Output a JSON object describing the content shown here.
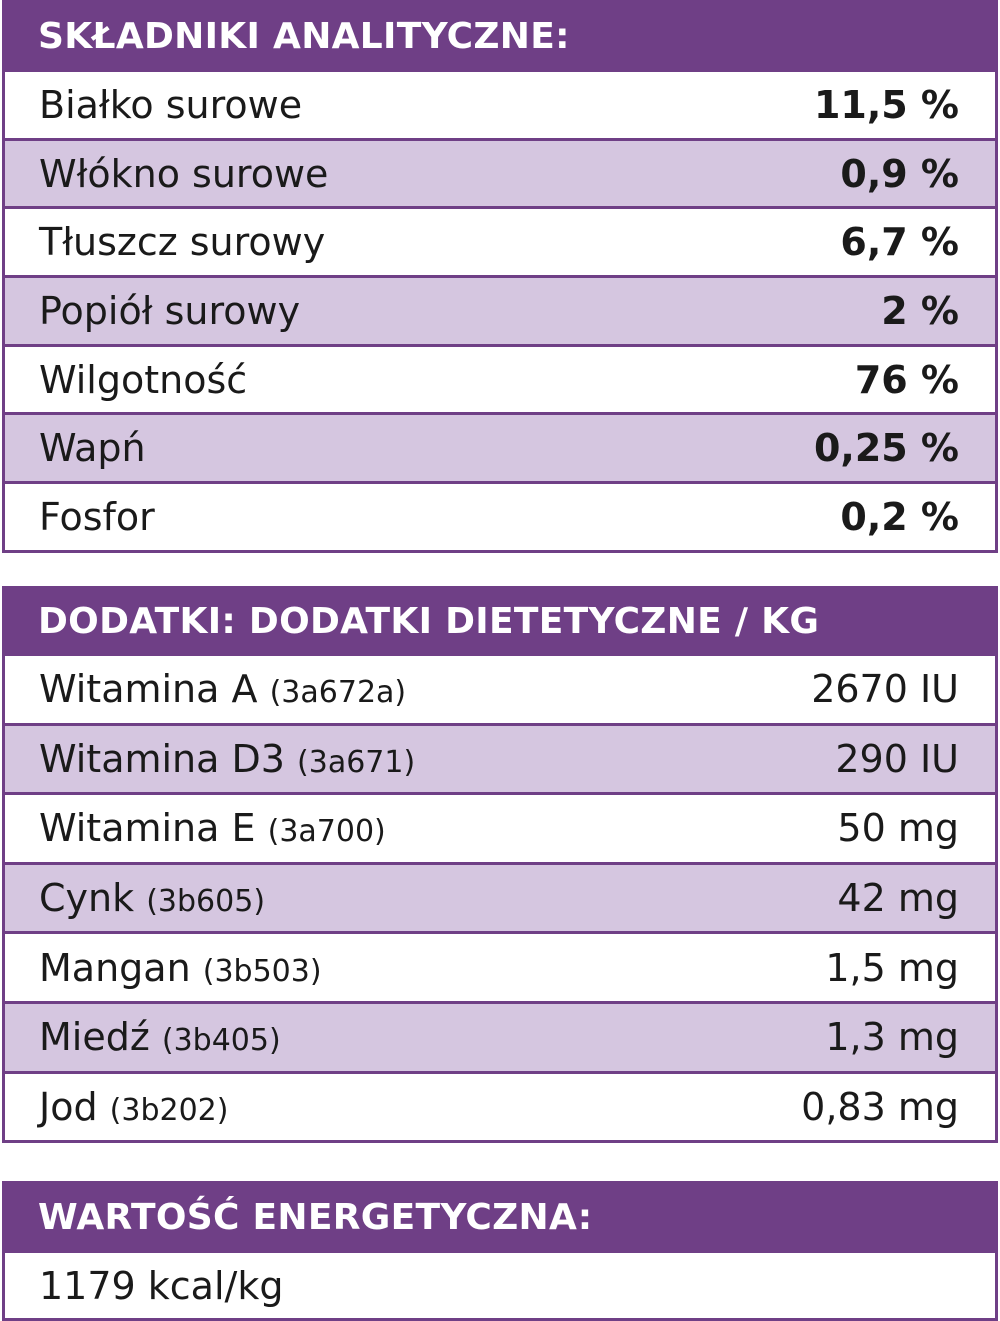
{
  "analytical": {
    "title": "SKŁADNIKI ANALITYCZNE:",
    "rows": [
      {
        "label": "Białko surowe",
        "value": "11,5 %"
      },
      {
        "label": "Włókno surowe",
        "value": "0,9 %"
      },
      {
        "label": "Tłuszcz surowy",
        "value": "6,7 %"
      },
      {
        "label": "Popiół surowy",
        "value": "2 %"
      },
      {
        "label": "Wilgotność",
        "value": "76 %"
      },
      {
        "label": "Wapń",
        "value": "0,25 %"
      },
      {
        "label": "Fosfor",
        "value": "0,2 %"
      }
    ]
  },
  "additives": {
    "title": "DODATKI: DODATKI DIETETYCZNE / KG",
    "rows": [
      {
        "label": "Witamina A",
        "code": "(3a672a)",
        "value": "2670 IU"
      },
      {
        "label": "Witamina D3",
        "code": "(3a671)",
        "value": "290 IU"
      },
      {
        "label": "Witamina E",
        "code": "(3a700)",
        "value": "50 mg"
      },
      {
        "label": "Cynk",
        "code": "(3b605)",
        "value": "42 mg"
      },
      {
        "label": "Mangan",
        "code": "(3b503)",
        "value": "1,5 mg"
      },
      {
        "label": "Miedź",
        "code": "(3b405)",
        "value": "1,3 mg"
      },
      {
        "label": "Jod",
        "code": "(3b202)",
        "value": "0,83 mg"
      }
    ]
  },
  "energy": {
    "title": "WARTOŚĆ ENERGETYCZNA:",
    "value": "1179 kcal/kg"
  }
}
